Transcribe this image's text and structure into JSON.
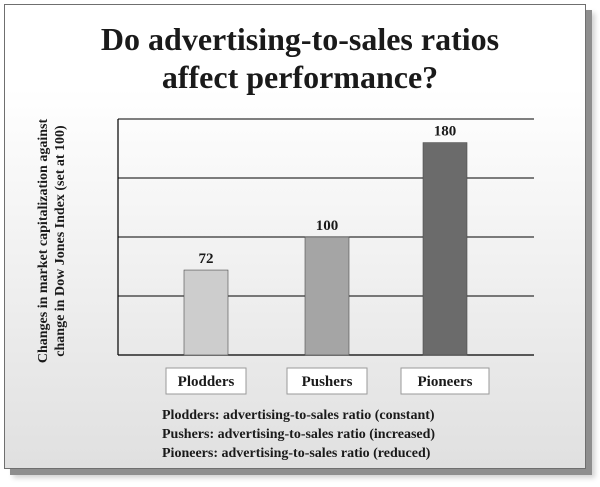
{
  "colors": {
    "plodders": "#cdcdcd",
    "pushers": "#a5a5a5",
    "pioneers": "#6b6b6b",
    "gridline": "#000000"
  },
  "chart_data": {
    "type": "bar",
    "title": "Do advertising-to-sales ratios affect performance?",
    "title_lines": [
      "Do advertising-to-sales ratios",
      "affect performance?"
    ],
    "ylabel": "Changes in market capitalization against change in Dow Jones Index (set at 100)",
    "ylabel_lines": [
      "Changes in market capitalization against",
      "change in Dow Jones Index (set at 100)"
    ],
    "xlabel": "",
    "categories": [
      "Plodders",
      "Pushers",
      "Pioneers"
    ],
    "values": [
      72,
      100,
      180
    ],
    "data_labels": [
      "72",
      "100",
      "180"
    ],
    "ylim": [
      0,
      200
    ],
    "grid": true,
    "legend": "none",
    "notes": [
      "Plodders: advertising-to-sales ratio (constant)",
      "Pushers: advertising-to-sales ratio (increased)",
      "Pioneers: advertising-to-sales ratio (reduced)"
    ]
  }
}
